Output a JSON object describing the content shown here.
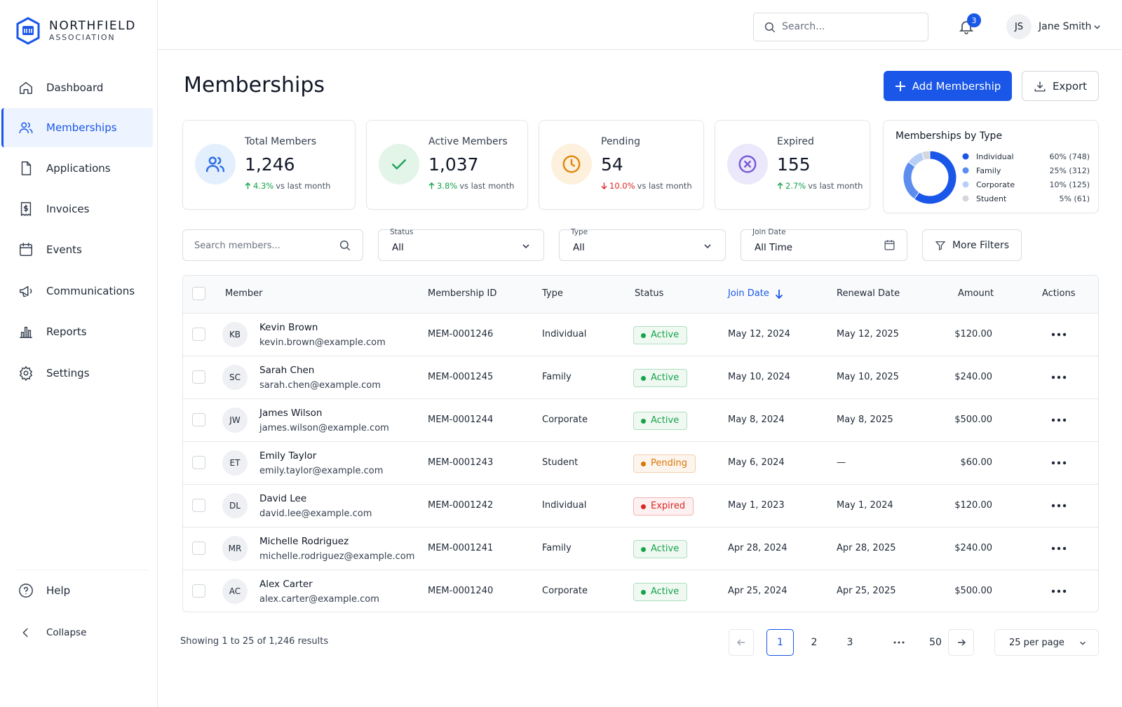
{
  "brand": {
    "name": "NORTHFIELD",
    "tagline": "ASSOCIATION"
  },
  "topbar": {
    "search_placeholder": "Search...",
    "notification_count": 3,
    "user": {
      "initials": "JS",
      "name": "Jane Smith"
    }
  },
  "sidebar": {
    "nav": [
      "Dashboard",
      "Memberships",
      "Applications",
      "Invoices",
      "Events",
      "Communications",
      "Reports",
      "Settings"
    ],
    "footer": [
      "Help",
      "Collapse"
    ]
  },
  "page": {
    "title": "Memberships",
    "actions": [
      "Add Membership",
      "Export"
    ]
  },
  "stats": [
    {
      "label": "Total Members",
      "value": "1,246",
      "change": "4.3%",
      "note": "vs last month"
    },
    {
      "label": "Active Members",
      "value": "1,037",
      "change": "3.8%",
      "note": "vs last month"
    },
    {
      "label": "Pending",
      "value": "54",
      "change": "10.0%",
      "note": "vs last month"
    },
    {
      "label": "Expired",
      "value": "155",
      "change": "2.7%",
      "note": "vs last month"
    }
  ],
  "chart_data": {
    "type": "pie",
    "title": "Memberships by Type",
    "categories": [
      "Individual",
      "Family",
      "Corporate",
      "Student"
    ],
    "values": [
      60,
      25,
      10,
      5
    ],
    "value_labels": [
      "60% (748)",
      "25% (312)",
      "10% (125)",
      "5% (61)"
    ],
    "colors": [
      "#1a56e8",
      "#5b8def",
      "#b7cff7",
      "#d4d7dd"
    ]
  },
  "filters": {
    "search_placeholder": "Search members...",
    "status": {
      "label": "Status",
      "value": "All"
    },
    "type": {
      "label": "Type",
      "value": "All"
    },
    "join_date": {
      "label": "Join Date",
      "value": "All Time"
    },
    "more": "More Filters"
  },
  "table": {
    "columns": [
      "Member",
      "Membership ID",
      "Type",
      "Status",
      "Join Date",
      "Renewal Date",
      "Amount",
      "Actions"
    ],
    "rows": [
      {
        "initials": "KB",
        "name": "Kevin Brown",
        "email": "kevin.brown@example.com",
        "id": "MEM-0001246",
        "type": "Individual",
        "status": {
          "label": "Active",
          "color": "#16a34a"
        },
        "join": "May 12, 2024",
        "renewal": "May 12, 2025",
        "amount": "$120.00"
      },
      {
        "initials": "SC",
        "name": "Sarah Chen",
        "email": "sarah.chen@example.com",
        "id": "MEM-0001245",
        "type": "Family",
        "status": {
          "label": "Active",
          "color": "#16a34a"
        },
        "join": "May 10, 2024",
        "renewal": "May 10, 2025",
        "amount": "$240.00"
      },
      {
        "initials": "JW",
        "name": "James Wilson",
        "email": "james.wilson@example.com",
        "id": "MEM-0001244",
        "type": "Corporate",
        "status": {
          "label": "Active",
          "color": "#16a34a"
        },
        "join": "May 8, 2024",
        "renewal": "May 8, 2025",
        "amount": "$500.00"
      },
      {
        "initials": "ET",
        "name": "Emily Taylor",
        "email": "emily.taylor@example.com",
        "id": "MEM-0001243",
        "type": "Student",
        "status": {
          "label": "Pending",
          "color": "#d97706"
        },
        "join": "May 6, 2024",
        "renewal": "—",
        "amount": "$60.00"
      },
      {
        "initials": "DL",
        "name": "David Lee",
        "email": "david.lee@example.com",
        "id": "MEM-0001242",
        "type": "Individual",
        "status": {
          "label": "Expired",
          "color": "#dc2626"
        },
        "join": "May 1, 2023",
        "renewal": "May 1, 2024",
        "amount": "$120.00"
      },
      {
        "initials": "MR",
        "name": "Michelle Rodriguez",
        "email": "michelle.rodriguez@example.com",
        "id": "MEM-0001241",
        "type": "Family",
        "status": {
          "label": "Active",
          "color": "#16a34a"
        },
        "join": "Apr 28, 2024",
        "renewal": "Apr 28, 2025",
        "amount": "$240.00"
      },
      {
        "initials": "AC",
        "name": "Alex Carter",
        "email": "alex.carter@example.com",
        "id": "MEM-0001240",
        "type": "Corporate",
        "status": {
          "label": "Active",
          "color": "#16a34a"
        },
        "join": "Apr 25, 2024",
        "renewal": "Apr 25, 2025",
        "amount": "$500.00"
      }
    ]
  },
  "pagination": {
    "summary": "Showing 1 to 25 of 1,246 results",
    "pages": [
      1,
      2,
      3,
      50
    ],
    "per_page": "25 per page"
  }
}
